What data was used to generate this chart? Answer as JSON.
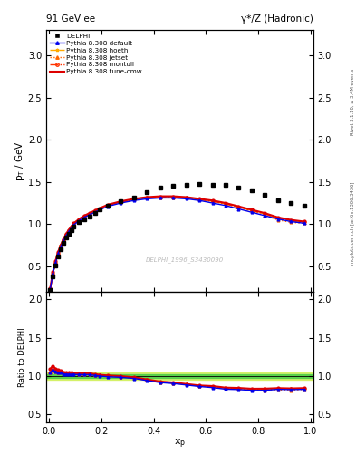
{
  "title_left": "91 GeV ee",
  "title_right": "γ*/Z (Hadronic)",
  "ylabel_main": "p_T / GeV",
  "ylabel_ratio": "Ratio to DELPHI",
  "xlabel": "x_p",
  "right_label_top": "Rivet 3.1.10, ≥ 3.4M events",
  "right_label_bottom": "mcplots.cern.ch [arXiv:1306.3436]",
  "watermark": "DELPHI_1996_S3430090",
  "ylim_main": [
    0.2,
    3.3
  ],
  "ylim_ratio": [
    0.4,
    2.1
  ],
  "yticks_main": [
    0.5,
    1.0,
    1.5,
    2.0,
    2.5,
    3.0
  ],
  "yticks_ratio": [
    0.5,
    1.0,
    1.5,
    2.0
  ],
  "data_x": [
    0.005,
    0.015,
    0.025,
    0.035,
    0.045,
    0.055,
    0.065,
    0.075,
    0.085,
    0.095,
    0.115,
    0.135,
    0.155,
    0.175,
    0.195,
    0.225,
    0.275,
    0.325,
    0.375,
    0.425,
    0.475,
    0.525,
    0.575,
    0.625,
    0.675,
    0.725,
    0.775,
    0.825,
    0.875,
    0.925,
    0.975
  ],
  "data_y": [
    0.22,
    0.38,
    0.51,
    0.62,
    0.7,
    0.78,
    0.84,
    0.89,
    0.93,
    0.97,
    1.02,
    1.06,
    1.09,
    1.13,
    1.17,
    1.22,
    1.27,
    1.32,
    1.38,
    1.43,
    1.45,
    1.47,
    1.48,
    1.47,
    1.47,
    1.43,
    1.4,
    1.35,
    1.28,
    1.25,
    1.22
  ],
  "cmw_x": [
    0.005,
    0.015,
    0.025,
    0.035,
    0.045,
    0.055,
    0.065,
    0.075,
    0.085,
    0.095,
    0.115,
    0.135,
    0.155,
    0.175,
    0.195,
    0.225,
    0.275,
    0.325,
    0.375,
    0.425,
    0.475,
    0.525,
    0.575,
    0.625,
    0.675,
    0.725,
    0.775,
    0.825,
    0.875,
    0.925,
    0.975
  ],
  "cmw_y": [
    0.24,
    0.43,
    0.56,
    0.67,
    0.75,
    0.82,
    0.88,
    0.93,
    0.97,
    1.01,
    1.06,
    1.1,
    1.13,
    1.16,
    1.19,
    1.23,
    1.27,
    1.3,
    1.32,
    1.33,
    1.33,
    1.32,
    1.3,
    1.28,
    1.25,
    1.21,
    1.17,
    1.13,
    1.08,
    1.05,
    1.03
  ],
  "default_x": [
    0.005,
    0.015,
    0.025,
    0.035,
    0.045,
    0.055,
    0.065,
    0.075,
    0.085,
    0.095,
    0.115,
    0.135,
    0.155,
    0.175,
    0.195,
    0.225,
    0.275,
    0.325,
    0.375,
    0.425,
    0.475,
    0.525,
    0.575,
    0.625,
    0.675,
    0.725,
    0.775,
    0.825,
    0.875,
    0.925,
    0.975
  ],
  "default_y": [
    0.23,
    0.41,
    0.54,
    0.65,
    0.73,
    0.8,
    0.86,
    0.91,
    0.95,
    0.99,
    1.04,
    1.08,
    1.11,
    1.14,
    1.17,
    1.21,
    1.25,
    1.28,
    1.3,
    1.31,
    1.31,
    1.3,
    1.28,
    1.25,
    1.22,
    1.18,
    1.14,
    1.1,
    1.06,
    1.03,
    1.01
  ],
  "hoeth_x": [
    0.005,
    0.015,
    0.025,
    0.035,
    0.045,
    0.055,
    0.065,
    0.075,
    0.085,
    0.095,
    0.115,
    0.135,
    0.155,
    0.175,
    0.195,
    0.225,
    0.275,
    0.325,
    0.375,
    0.425,
    0.475,
    0.525,
    0.575,
    0.625,
    0.675,
    0.725,
    0.775,
    0.825,
    0.875,
    0.925,
    0.975
  ],
  "hoeth_y": [
    0.23,
    0.41,
    0.54,
    0.65,
    0.74,
    0.81,
    0.87,
    0.92,
    0.96,
    1.0,
    1.05,
    1.09,
    1.12,
    1.15,
    1.18,
    1.22,
    1.26,
    1.29,
    1.31,
    1.32,
    1.32,
    1.31,
    1.29,
    1.27,
    1.24,
    1.2,
    1.16,
    1.12,
    1.07,
    1.04,
    1.02
  ],
  "jetset_x": [
    0.005,
    0.015,
    0.025,
    0.035,
    0.045,
    0.055,
    0.065,
    0.075,
    0.085,
    0.095,
    0.115,
    0.135,
    0.155,
    0.175,
    0.195,
    0.225,
    0.275,
    0.325,
    0.375,
    0.425,
    0.475,
    0.525,
    0.575,
    0.625,
    0.675,
    0.725,
    0.775,
    0.825,
    0.875,
    0.925,
    0.975
  ],
  "jetset_y": [
    0.23,
    0.41,
    0.54,
    0.65,
    0.74,
    0.81,
    0.87,
    0.92,
    0.96,
    1.0,
    1.05,
    1.09,
    1.12,
    1.15,
    1.18,
    1.22,
    1.26,
    1.29,
    1.31,
    1.32,
    1.32,
    1.31,
    1.29,
    1.27,
    1.24,
    1.2,
    1.15,
    1.1,
    1.05,
    1.02,
    1.01
  ],
  "montull_x": [
    0.005,
    0.015,
    0.025,
    0.035,
    0.045,
    0.055,
    0.065,
    0.075,
    0.085,
    0.095,
    0.115,
    0.135,
    0.155,
    0.175,
    0.195,
    0.225,
    0.275,
    0.325,
    0.375,
    0.425,
    0.475,
    0.525,
    0.575,
    0.625,
    0.675,
    0.725,
    0.775,
    0.825,
    0.875,
    0.925,
    0.975
  ],
  "montull_y": [
    0.23,
    0.41,
    0.54,
    0.65,
    0.74,
    0.81,
    0.87,
    0.92,
    0.96,
    1.0,
    1.05,
    1.09,
    1.12,
    1.15,
    1.18,
    1.22,
    1.26,
    1.29,
    1.31,
    1.32,
    1.32,
    1.31,
    1.29,
    1.27,
    1.24,
    1.2,
    1.16,
    1.12,
    1.07,
    1.04,
    1.02
  ],
  "color_default": "#0000ee",
  "color_hoeth": "#ffaa00",
  "color_jetset": "#ff6600",
  "color_montull": "#ff3300",
  "color_cmw": "#dd0000",
  "color_data": "#000000",
  "green_inner": 0.02,
  "green_outer": 0.05,
  "bg": "#ffffff"
}
